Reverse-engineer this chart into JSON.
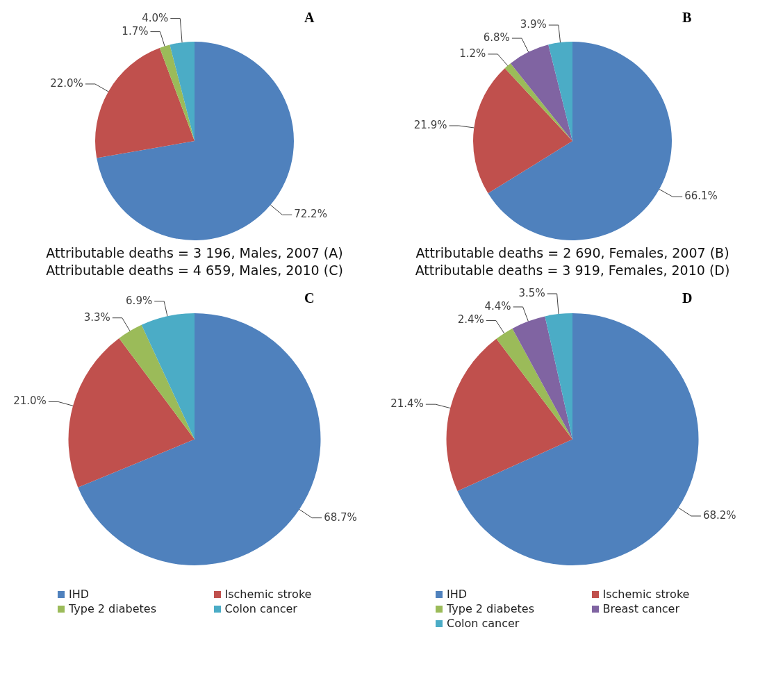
{
  "chart_data": [
    {
      "type": "pie",
      "title": "A",
      "annotations": [
        "Attributable deaths = 3 196, Males, 2007 (A)"
      ],
      "categories": [
        null,
        null,
        null,
        null
      ],
      "values": [
        72.2,
        22.0,
        1.7,
        4.0
      ],
      "value_labels": [
        "72.2%",
        "22.0%",
        "1.7%",
        "4.0%"
      ],
      "colors": [
        "#4f81bd",
        "#c0504d",
        "#9bbb59",
        "#4bacc6"
      ]
    },
    {
      "type": "pie",
      "title": "B",
      "annotations": [
        "Attributable deaths = 2 690, Females, 2007 (B)"
      ],
      "categories": [
        null,
        null,
        null,
        null,
        null
      ],
      "values": [
        66.1,
        21.9,
        1.2,
        6.8,
        3.9
      ],
      "value_labels": [
        "66.1%",
        "21.9%",
        "1.2%",
        "6.8%",
        "3.9%"
      ],
      "colors": [
        "#4f81bd",
        "#c0504d",
        "#9bbb59",
        "#8064a2",
        "#4bacc6"
      ]
    },
    {
      "type": "pie",
      "title": "C",
      "annotations": [
        "Attributable deaths = 4 659, Males, 2010 (C)"
      ],
      "categories": [
        "IHD",
        "Ischemic stroke",
        "Type 2 diabetes",
        "Colon cancer"
      ],
      "values": [
        68.7,
        21.0,
        3.3,
        6.9
      ],
      "value_labels": [
        "68.7%",
        "21.0%",
        "3.3%",
        "6.9%"
      ],
      "colors": [
        "#4f81bd",
        "#c0504d",
        "#9bbb59",
        "#4bacc6"
      ],
      "legend": "bottom"
    },
    {
      "type": "pie",
      "title": "D",
      "annotations": [
        "Attributable deaths = 3 919, Females, 2010 (D)"
      ],
      "categories": [
        "IHD",
        "Ischemic stroke",
        "Type 2 diabetes",
        "Breast cancer",
        "Colon cancer"
      ],
      "values": [
        68.2,
        21.4,
        2.4,
        4.4,
        3.5
      ],
      "value_labels": [
        "68.2%",
        "21.4%",
        "2.4%",
        "4.4%",
        "3.5%"
      ],
      "colors": [
        "#4f81bd",
        "#c0504d",
        "#9bbb59",
        "#8064a2",
        "#4bacc6"
      ],
      "legend": "bottom"
    }
  ]
}
